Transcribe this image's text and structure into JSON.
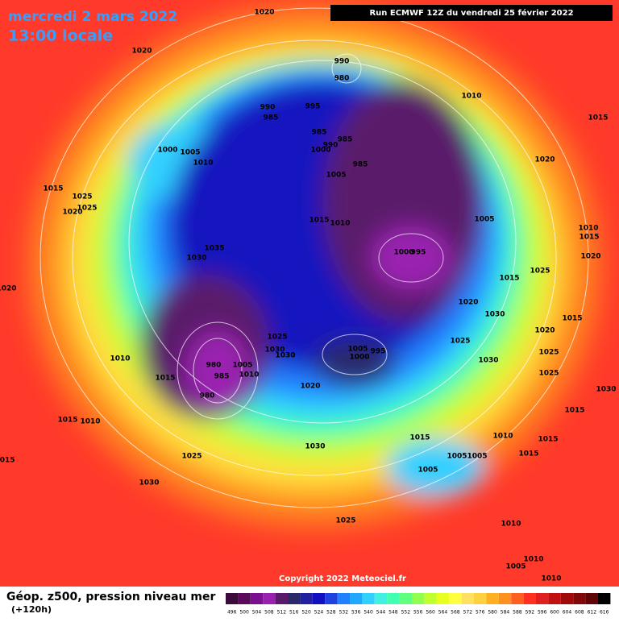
{
  "header": {
    "date": "mercredi 2 mars 2022",
    "time": "13:00 locale",
    "run": "Run ECMWF 12Z du vendredi 25 février 2022"
  },
  "copyright": "Copyright 2022 Meteociel.fr",
  "legend": {
    "title": "Géop. z500, pression niveau mer",
    "subtitle": "(+120h)",
    "levels": [
      496,
      500,
      504,
      508,
      512,
      516,
      520,
      524,
      528,
      532,
      536,
      540,
      544,
      548,
      552,
      556,
      560,
      564,
      568,
      572,
      576,
      580,
      584,
      588,
      592,
      596,
      600,
      604,
      608,
      612,
      616
    ],
    "colors": [
      "#3b0b3b",
      "#5a0a5a",
      "#7a1090",
      "#9a20b0",
      "#5a1a6a",
      "#2a2a6a",
      "#2020a0",
      "#1010c0",
      "#2040e0",
      "#2080ff",
      "#20a8ff",
      "#30d0ff",
      "#40f0e0",
      "#40ffb0",
      "#60ff80",
      "#90ff50",
      "#c0ff30",
      "#e8ff20",
      "#ffff40",
      "#ffe060",
      "#ffd040",
      "#ffb020",
      "#ff9020",
      "#ff6020",
      "#ff3020",
      "#e02020",
      "#c01010",
      "#a00a0a",
      "#800808",
      "#600505",
      "#000000"
    ]
  },
  "isobars": [
    "1020",
    "1020",
    "990",
    "980",
    "990",
    "985",
    "995",
    "1010",
    "1015",
    "1000",
    "1005",
    "1010",
    "985",
    "985",
    "990",
    "1000",
    "985",
    "1005",
    "1020",
    "1015",
    "1025",
    "1025",
    "1020",
    "1015",
    "1010",
    "1005",
    "1010",
    "1015",
    "1035",
    "1030",
    "1000",
    "995",
    "1020",
    "1025",
    "1020",
    "1015",
    "1020",
    "1030",
    "1020",
    "1015",
    "1025",
    "1005",
    "995",
    "1000",
    "1025",
    "1030",
    "1030",
    "1010",
    "1030",
    "1025",
    "980",
    "1005",
    "985",
    "1010",
    "1015",
    "1020",
    "1025",
    "1030",
    "980",
    "1015",
    "1010",
    "1015",
    "1030",
    "1015",
    "1010",
    "1015",
    "1005",
    "1005",
    "1015",
    "1025",
    "1015",
    "1005",
    "1030",
    "1025",
    "1010",
    "1010",
    "1005",
    "1010"
  ]
}
